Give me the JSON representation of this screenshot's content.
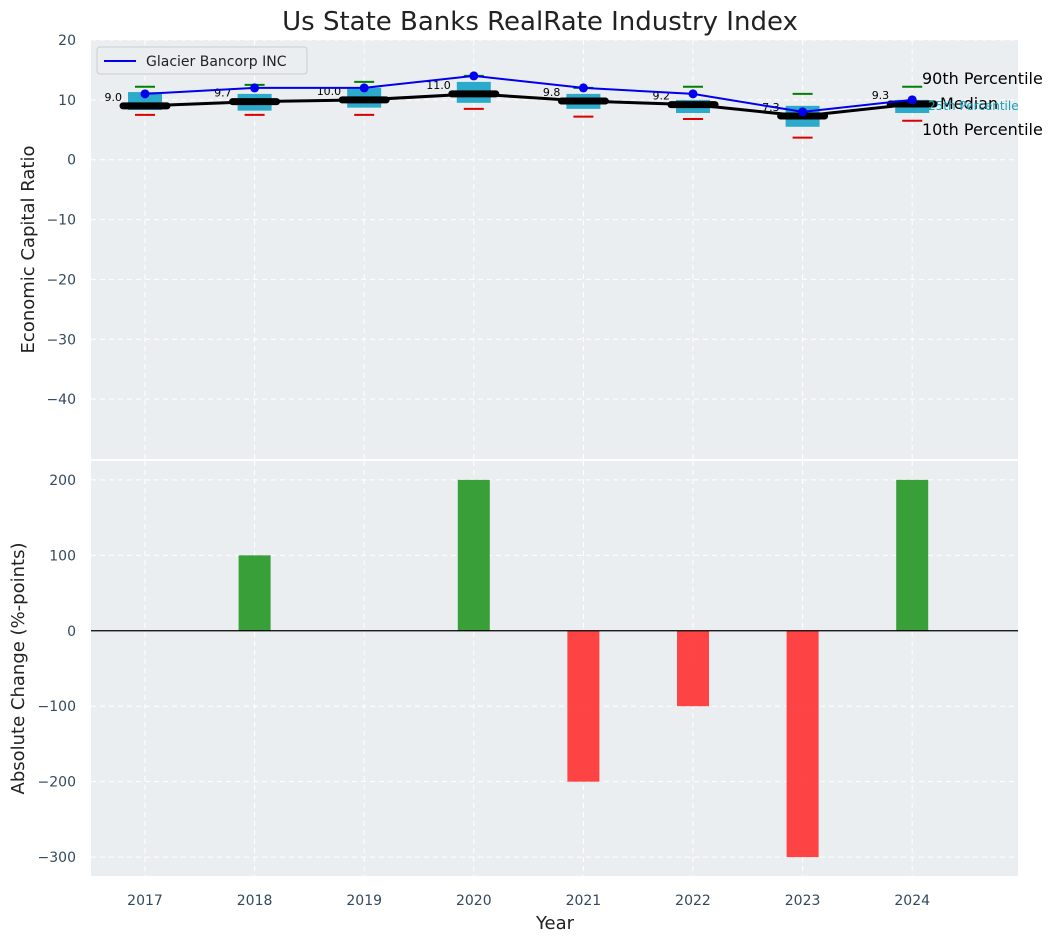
{
  "chart_data": {
    "type": "composite",
    "title": "Us State Banks RealRate Industry Index",
    "xlabel": "Year",
    "categories": [
      "2017",
      "2018",
      "2019",
      "2020",
      "2021",
      "2022",
      "2023",
      "2024"
    ],
    "top_panel": {
      "type": "box+line",
      "ylabel": "Economic Capital Ratio",
      "ylim": [
        -50,
        20
      ],
      "yticks": [
        20,
        10,
        0,
        -10,
        -20,
        -30,
        -40
      ],
      "ytick_labels": [
        "20",
        "10",
        "0",
        "−10",
        "−20",
        "−30",
        "−40"
      ],
      "series_name": "Glacier Bancorp INC",
      "company_values": [
        11.0,
        12.0,
        12.0,
        14.0,
        12.0,
        11.0,
        8.0,
        10.0
      ],
      "median": [
        9.0,
        9.7,
        10.0,
        11.0,
        9.8,
        9.2,
        7.3,
        9.3
      ],
      "median_labels": [
        "9.0",
        "9.7",
        "10.0",
        "11.0",
        "9.8",
        "9.2",
        "7.3",
        "9.3"
      ],
      "p10": [
        7.5,
        7.5,
        7.5,
        8.5,
        7.2,
        6.8,
        3.7,
        6.5
      ],
      "p25": [
        8.3,
        8.2,
        8.7,
        9.5,
        8.5,
        7.8,
        5.5,
        7.8
      ],
      "p75": [
        11.3,
        11.0,
        12.0,
        13.0,
        11.0,
        10.0,
        9.0,
        10.0
      ],
      "p90": [
        12.2,
        12.5,
        13.0,
        14.0,
        12.0,
        12.2,
        11.0,
        12.2
      ],
      "percentile_annotations": {
        "p90": "90th Percentile",
        "median": "Median",
        "p25": "25th Percentile",
        "p10": "10th Percentile"
      }
    },
    "bottom_panel": {
      "type": "bar",
      "ylabel": "Absolute Change (%-points)",
      "ylim": [
        -325,
        225
      ],
      "yticks": [
        200,
        100,
        0,
        -100,
        -200,
        -300
      ],
      "ytick_labels": [
        "200",
        "100",
        "0",
        "−100",
        "−200",
        "−300"
      ],
      "values": [
        0,
        100,
        0,
        200,
        -200,
        -100,
        -300,
        200
      ],
      "positive_color": "#2e9a2e",
      "negative_color": "#ff3030"
    },
    "colors": {
      "background": "#eaeef0",
      "company_line": "#0000ee",
      "median_line": "#000000",
      "box_fill": "#17a2c8",
      "whisker_top": "#008000",
      "whisker_bottom": "#dd0000"
    }
  }
}
